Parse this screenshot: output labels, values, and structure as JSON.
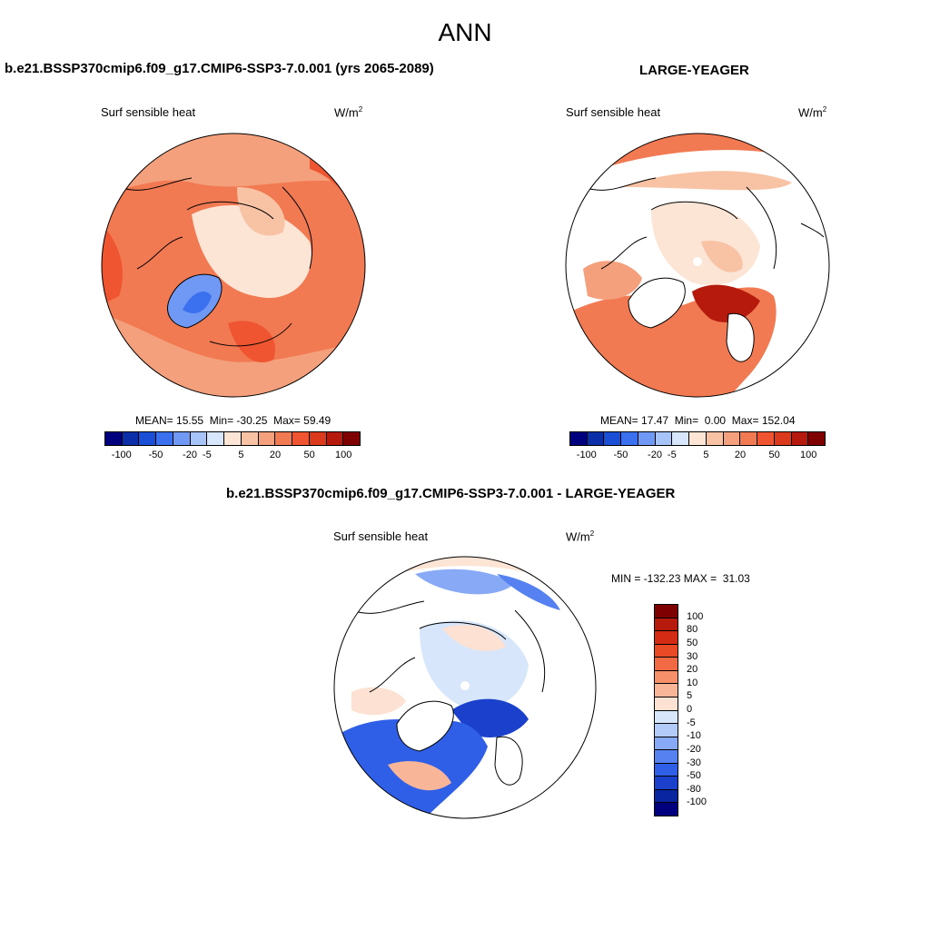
{
  "title": "ANN",
  "panels": [
    {
      "name": "case",
      "heading": "b.e21.BSSP370cmip6.f09_g17.CMIP6-SSP3-7.0.001 (yrs 2065-2089)",
      "variable": "Surf sensible heat",
      "units_base": "W/m",
      "units_exp": "2",
      "stats": {
        "mean_label": "MEAN=",
        "mean": "15.55",
        "min_label": "Min=",
        "min": "-30.25",
        "max_label": "Max=",
        "max": "59.49"
      }
    },
    {
      "name": "obs",
      "heading": "LARGE-YEAGER",
      "variable": "Surf sensible heat",
      "units_base": "W/m",
      "units_exp": "2",
      "stats": {
        "mean_label": "MEAN=",
        "mean": "17.47",
        "min_label": "Min=",
        "min": "0.00",
        "max_label": "Max=",
        "max": "152.04"
      }
    },
    {
      "name": "diff",
      "heading": "b.e21.BSSP370cmip6.f09_g17.CMIP6-SSP3-7.0.001 - LARGE-YEAGER",
      "variable": "Surf sensible heat",
      "units_base": "W/m",
      "units_exp": "2",
      "stats": {
        "min_label": "MIN =",
        "min": "-132.23",
        "max_label": "MAX =",
        "max": "31.03"
      }
    }
  ],
  "colorbars": {
    "horizontal": {
      "colors": [
        "#00007f",
        "#0a2fa8",
        "#1b4fd6",
        "#3b70ee",
        "#6f99f5",
        "#a7c4f8",
        "#d8e6fb",
        "#fde5d6",
        "#f8c2a4",
        "#f5a07c",
        "#f27a52",
        "#ee5530",
        "#dc3a1c",
        "#b51a0d",
        "#7f0000"
      ],
      "ticks": [
        "-100",
        "-50",
        "-20",
        "-5",
        "5",
        "20",
        "50",
        "100"
      ]
    },
    "vertical": {
      "colors": [
        "#7f0000",
        "#b51a0d",
        "#d42c14",
        "#e84a25",
        "#f16a44",
        "#f5906a",
        "#f8b598",
        "#fde2d3",
        "#d7e6fb",
        "#b3cbf9",
        "#87a9f6",
        "#5582f0",
        "#2f5fe6",
        "#1a40cc",
        "#0a25a0",
        "#00007f"
      ],
      "ticks": [
        "100",
        "80",
        "50",
        "30",
        "20",
        "10",
        "5",
        "0",
        "-5",
        "-10",
        "-20",
        "-30",
        "-50",
        "-80",
        "-100"
      ]
    }
  }
}
